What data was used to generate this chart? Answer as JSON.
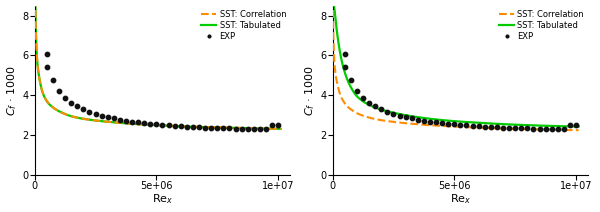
{
  "xlabel": "Re$_x$",
  "ylabel": "$C_f$ · 1000",
  "xlim": [
    0,
    10500000.0
  ],
  "ylim": [
    0,
    8.5
  ],
  "yticks": [
    0,
    2,
    4,
    6,
    8
  ],
  "legend_labels": [
    "SST: Correlation",
    "SST: Tabulated",
    "EXP"
  ],
  "color_correlation": "#FF8C00",
  "color_tabulated": "#00CC00",
  "color_exp": "#111111",
  "fine_cf_a": 0.455,
  "fine_cf_b": -0.2,
  "fine_cf_scale": 1000,
  "fine_x_start": 30000,
  "exp_x": [
    500000,
    750000,
    1000000,
    1250000,
    1500000,
    1750000,
    2000000,
    2250000,
    2500000,
    2750000,
    3000000,
    3250000,
    3500000,
    3750000,
    4000000,
    4250000,
    4500000,
    4750000,
    5000000,
    5250000,
    5500000,
    5750000,
    6000000,
    6250000,
    6500000,
    6750000,
    7000000,
    7250000,
    7500000,
    7750000,
    8000000,
    8250000,
    8500000,
    8750000,
    9000000,
    9250000,
    9500000,
    9750000,
    10000000
  ],
  "exp_y": [
    5.4,
    4.75,
    4.2,
    3.85,
    3.62,
    3.44,
    3.3,
    3.18,
    3.07,
    2.98,
    2.9,
    2.84,
    2.78,
    2.73,
    2.68,
    2.64,
    2.61,
    2.57,
    2.54,
    2.51,
    2.49,
    2.47,
    2.45,
    2.43,
    2.41,
    2.4,
    2.38,
    2.37,
    2.36,
    2.35,
    2.34,
    2.33,
    2.32,
    2.31,
    2.31,
    2.3,
    2.29,
    2.51,
    2.5
  ],
  "exp_extra_x": [
    500000
  ],
  "exp_extra_y": [
    6.05
  ],
  "fine_smooth_x": [
    10000,
    30000,
    60000,
    100000,
    150000,
    200000,
    300000,
    400000,
    600000,
    800000,
    1000000,
    1500000,
    2000000,
    3000000,
    4000000,
    5000000,
    6000000,
    7000000,
    8000000,
    9000000,
    10000000
  ],
  "fine_corr_y": [
    12.0,
    8.5,
    6.8,
    5.8,
    5.2,
    4.8,
    4.25,
    3.92,
    3.55,
    3.35,
    3.2,
    2.95,
    2.82,
    2.67,
    2.57,
    2.5,
    2.44,
    2.4,
    2.37,
    2.34,
    2.32
  ],
  "fine_tab_y": [
    12.0,
    8.5,
    6.8,
    5.8,
    5.2,
    4.8,
    4.25,
    3.92,
    3.55,
    3.35,
    3.2,
    2.95,
    2.82,
    2.67,
    2.57,
    2.5,
    2.44,
    2.4,
    2.37,
    2.34,
    2.32
  ],
  "coarse_smooth_x": [
    10000,
    30000,
    60000,
    100000,
    150000,
    200000,
    300000,
    400000,
    600000,
    800000,
    1000000,
    1500000,
    2000000,
    3000000,
    4000000,
    5000000,
    6000000,
    7000000,
    8000000,
    9000000,
    10000000
  ],
  "coarse_corr_y": [
    9.5,
    7.2,
    6.0,
    5.3,
    4.85,
    4.55,
    4.08,
    3.8,
    3.45,
    3.25,
    3.1,
    2.88,
    2.75,
    2.6,
    2.5,
    2.43,
    2.37,
    2.33,
    2.3,
    2.27,
    2.25
  ],
  "coarse_tab_y": [
    9.5,
    9.0,
    8.5,
    8.1,
    7.5,
    7.0,
    6.2,
    5.6,
    4.8,
    4.3,
    3.95,
    3.52,
    3.28,
    3.0,
    2.82,
    2.7,
    2.62,
    2.55,
    2.5,
    2.46,
    2.43
  ]
}
